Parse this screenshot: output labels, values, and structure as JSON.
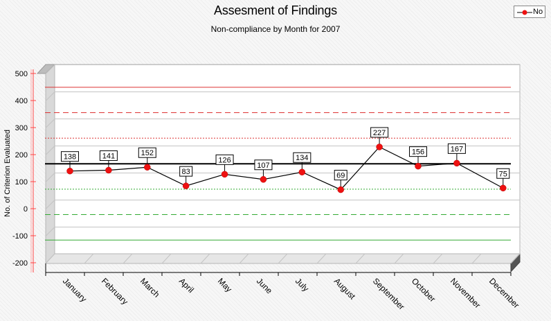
{
  "title": "Assesment of Findings",
  "subtitle": "Non-compliance by Month for 2007",
  "legend": {
    "label": "No"
  },
  "colors": {
    "series": "#ee1111",
    "line": "#000000",
    "ucl": "#dd3333",
    "lcl": "#33aa33",
    "mean": "#000000",
    "axis_red": "#ff4444"
  },
  "chart_data": {
    "type": "line",
    "title": "Assesment of Findings",
    "subtitle": "Non-compliance by Month for 2007",
    "xlabel": "",
    "ylabel": "No. of Criterion Evaluated",
    "ylim": [
      -200,
      500
    ],
    "yticks": [
      500,
      400,
      300,
      200,
      100,
      0,
      -100,
      -200
    ],
    "categories": [
      "January",
      "February",
      "March",
      "April",
      "May",
      "June",
      "July",
      "August",
      "September",
      "October",
      "November",
      "December"
    ],
    "series": [
      {
        "name": "No",
        "values": [
          138,
          141,
          152,
          83,
          126,
          107,
          134,
          69,
          227,
          156,
          167,
          75
        ]
      }
    ],
    "reference_lines": [
      {
        "value": 417,
        "style": "solid",
        "color": "#dd3333"
      },
      {
        "value": 323,
        "style": "dashed",
        "color": "#dd3333"
      },
      {
        "value": 229,
        "style": "dotted",
        "color": "#dd3333"
      },
      {
        "value": 134,
        "style": "solid",
        "color": "#000000"
      },
      {
        "value": 40,
        "style": "dotted",
        "color": "#33aa33"
      },
      {
        "value": -54,
        "style": "dashed",
        "color": "#33aa33"
      },
      {
        "value": -148,
        "style": "solid",
        "color": "#33aa33"
      }
    ],
    "legend_position": "top-right",
    "grid": true
  }
}
